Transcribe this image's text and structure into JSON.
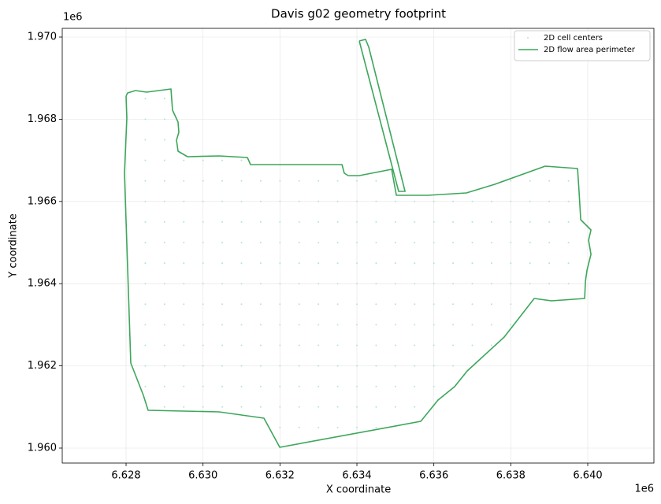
{
  "chart_data": {
    "type": "line",
    "title": "Davis g02 geometry footprint",
    "x_label": "X coordinate",
    "y_label": "Y coordinate",
    "x_offset_label": "1e6",
    "y_offset_label": "1e6",
    "xlim": [
      6626341,
      6641720
    ],
    "ylim": [
      1959636,
      1970211
    ],
    "xticks": [
      {
        "value": 6628000,
        "label": "6.628"
      },
      {
        "value": 6630000,
        "label": "6.630"
      },
      {
        "value": 6632000,
        "label": "6.632"
      },
      {
        "value": 6634000,
        "label": "6.634"
      },
      {
        "value": 6636000,
        "label": "6.636"
      },
      {
        "value": 6638000,
        "label": "6.638"
      },
      {
        "value": 6640000,
        "label": "6.640"
      }
    ],
    "yticks": [
      {
        "value": 1960000,
        "label": "1.960"
      },
      {
        "value": 1962000,
        "label": "1.962"
      },
      {
        "value": 1964000,
        "label": "1.964"
      },
      {
        "value": 1966000,
        "label": "1.966"
      },
      {
        "value": 1968000,
        "label": "1.968"
      },
      {
        "value": 1970000,
        "label": "1.970"
      }
    ],
    "grid": true,
    "legend": "upper right",
    "series": [
      {
        "name": "2D cell centers",
        "type": "scatter",
        "color": "#b4e3dc",
        "x": [
          6632000,
          6632500,
          6633000,
          6633500,
          6634000,
          6634500,
          6629000,
          6629500,
          6630000,
          6630500,
          6631000,
          6631500,
          6632000,
          6632500,
          6633000,
          6633500,
          6634000,
          6634500,
          6635000,
          6635500,
          6628500,
          6629000,
          6629500,
          6630000,
          6630500,
          6631000,
          6631500,
          6632000,
          6632500,
          6633000,
          6633500,
          6634000,
          6634500,
          6635000,
          6635500,
          6636000,
          6628500,
          6629000,
          6629500,
          6630000,
          6630500,
          6631000,
          6631500,
          6632000,
          6632500,
          6633000,
          6633500,
          6634000,
          6634500,
          6635000,
          6635500,
          6636000,
          6636500,
          6628500,
          6629000,
          6629500,
          6630000,
          6630500,
          6631000,
          6631500,
          6632000,
          6632500,
          6633000,
          6633500,
          6634000,
          6634500,
          6635000,
          6635500,
          6636000,
          6636500,
          6637000,
          6637500,
          6628500,
          6629000,
          6629500,
          6630000,
          6630500,
          6631000,
          6631500,
          6632000,
          6632500,
          6633000,
          6633500,
          6634000,
          6634500,
          6635000,
          6635500,
          6636000,
          6636500,
          6637000,
          6637500,
          6638000,
          6628500,
          6629000,
          6629500,
          6630000,
          6630500,
          6631000,
          6631500,
          6632000,
          6632500,
          6633000,
          6633500,
          6634000,
          6634500,
          6635000,
          6635500,
          6636000,
          6636500,
          6637000,
          6637500,
          6638000,
          6628500,
          6629000,
          6629500,
          6630000,
          6630500,
          6631000,
          6631500,
          6632000,
          6632500,
          6633000,
          6633500,
          6634000,
          6634500,
          6635000,
          6635500,
          6636000,
          6636500,
          6637000,
          6637500,
          6638000,
          6638500,
          6639000,
          6639500,
          6628500,
          6629000,
          6629500,
          6630000,
          6630500,
          6631000,
          6631500,
          6632000,
          6632500,
          6633000,
          6633500,
          6634000,
          6634500,
          6635000,
          6635500,
          6636000,
          6636500,
          6637000,
          6637500,
          6638000,
          6638500,
          6639000,
          6639500,
          6628500,
          6629000,
          6629500,
          6630000,
          6630500,
          6631000,
          6631500,
          6632000,
          6632500,
          6633000,
          6633500,
          6634000,
          6634500,
          6635000,
          6635500,
          6636000,
          6636500,
          6637000,
          6637500,
          6638000,
          6638500,
          6639000,
          6639500,
          6628500,
          6629000,
          6629500,
          6630000,
          6630500,
          6631000,
          6631500,
          6632000,
          6632500,
          6633000,
          6633500,
          6634000,
          6634500,
          6635000,
          6635500,
          6636000,
          6636500,
          6637000,
          6637500,
          6638000,
          6638500,
          6639000,
          6639500,
          6628500,
          6629000,
          6629500,
          6630000,
          6630500,
          6631000,
          6631500,
          6632000,
          6632500,
          6633000,
          6633500,
          6634000,
          6634500,
          6635000,
          6635500,
          6636000,
          6636500,
          6637000,
          6637500,
          6638000,
          6638500,
          6639000,
          6639500,
          6628500,
          6629000,
          6629500,
          6630000,
          6630500,
          6631000,
          6631500,
          6632000,
          6632500,
          6633000,
          6633500,
          6634000,
          6634500,
          6638000,
          6638500,
          6639000,
          6639500,
          6628500,
          6629000,
          6629500,
          6630000,
          6630500,
          6631000,
          6628500,
          6629000,
          6628500,
          6629000,
          6628500,
          6629000
        ],
        "y": [
          1960500,
          1960500,
          1960500,
          1960500,
          1960500,
          1960500,
          1961000,
          1961000,
          1961000,
          1961000,
          1961000,
          1961000,
          1961000,
          1961000,
          1961000,
          1961000,
          1961000,
          1961000,
          1961000,
          1961000,
          1961500,
          1961500,
          1961500,
          1961500,
          1961500,
          1961500,
          1961500,
          1961500,
          1961500,
          1961500,
          1961500,
          1961500,
          1961500,
          1961500,
          1961500,
          1961500,
          1962000,
          1962000,
          1962000,
          1962000,
          1962000,
          1962000,
          1962000,
          1962000,
          1962000,
          1962000,
          1962000,
          1962000,
          1962000,
          1962000,
          1962000,
          1962000,
          1962000,
          1962500,
          1962500,
          1962500,
          1962500,
          1962500,
          1962500,
          1962500,
          1962500,
          1962500,
          1962500,
          1962500,
          1962500,
          1962500,
          1962500,
          1962500,
          1962500,
          1962500,
          1962500,
          1962500,
          1963000,
          1963000,
          1963000,
          1963000,
          1963000,
          1963000,
          1963000,
          1963000,
          1963000,
          1963000,
          1963000,
          1963000,
          1963000,
          1963000,
          1963000,
          1963000,
          1963000,
          1963000,
          1963000,
          1963000,
          1963500,
          1963500,
          1963500,
          1963500,
          1963500,
          1963500,
          1963500,
          1963500,
          1963500,
          1963500,
          1963500,
          1963500,
          1963500,
          1963500,
          1963500,
          1963500,
          1963500,
          1963500,
          1963500,
          1963500,
          1964000,
          1964000,
          1964000,
          1964000,
          1964000,
          1964000,
          1964000,
          1964000,
          1964000,
          1964000,
          1964000,
          1964000,
          1964000,
          1964000,
          1964000,
          1964000,
          1964000,
          1964000,
          1964000,
          1964000,
          1964000,
          1964000,
          1964000,
          1964500,
          1964500,
          1964500,
          1964500,
          1964500,
          1964500,
          1964500,
          1964500,
          1964500,
          1964500,
          1964500,
          1964500,
          1964500,
          1964500,
          1964500,
          1964500,
          1964500,
          1964500,
          1964500,
          1964500,
          1964500,
          1964500,
          1964500,
          1965000,
          1965000,
          1965000,
          1965000,
          1965000,
          1965000,
          1965000,
          1965000,
          1965000,
          1965000,
          1965000,
          1965000,
          1965000,
          1965000,
          1965000,
          1965000,
          1965000,
          1965000,
          1965000,
          1965000,
          1965000,
          1965000,
          1965000,
          1965500,
          1965500,
          1965500,
          1965500,
          1965500,
          1965500,
          1965500,
          1965500,
          1965500,
          1965500,
          1965500,
          1965500,
          1965500,
          1965500,
          1965500,
          1965500,
          1965500,
          1965500,
          1965500,
          1965500,
          1965500,
          1965500,
          1965500,
          1966000,
          1966000,
          1966000,
          1966000,
          1966000,
          1966000,
          1966000,
          1966000,
          1966000,
          1966000,
          1966000,
          1966000,
          1966000,
          1966000,
          1966000,
          1966000,
          1966000,
          1966000,
          1966000,
          1966000,
          1966000,
          1966000,
          1966000,
          1966500,
          1966500,
          1966500,
          1966500,
          1966500,
          1966500,
          1966500,
          1966500,
          1966500,
          1966500,
          1966500,
          1966500,
          1966500,
          1966500,
          1966500,
          1966500,
          1966500,
          1967000,
          1967000,
          1967000,
          1967000,
          1967000,
          1967000,
          1967500,
          1967500,
          1968000,
          1968000,
          1968500,
          1968500
        ]
      },
      {
        "name": "2D flow area perimeter",
        "color": "#3da65b",
        "x": [
          6628000,
          6628041,
          6628246,
          6628532,
          6629167,
          6629208,
          6629352,
          6629372,
          6629311,
          6629352,
          6629597,
          6630417,
          6631154,
          6631236,
          6633612,
          6633673,
          6633775,
          6634062,
          6634902,
          6635025,
          6635844,
          6636847,
          6637585,
          6638895,
          6639735,
          6639776,
          6639817,
          6640083,
          6640022,
          6640083,
          6639981,
          6639940,
          6639919,
          6639059,
          6638609,
          6637830,
          6636868,
          6636540,
          6636110,
          6635660,
          6631994,
          6631584,
          6630417,
          6628573,
          6628451,
          6628123,
          6627959,
          6628020,
          6628000,
          null,
          6634062,
          6634226,
          6634308,
          6635250,
          6635086,
          6634062
        ],
        "y": [
          1968563,
          1968640,
          1968697,
          1968659,
          1968736,
          1968218,
          1967931,
          1967682,
          1967490,
          1967222,
          1967088,
          1967107,
          1967069,
          1966897,
          1966897,
          1966686,
          1966628,
          1966628,
          1966782,
          1966149,
          1966149,
          1966207,
          1966418,
          1966858,
          1966801,
          1966207,
          1965556,
          1965307,
          1965057,
          1964713,
          1964330,
          1964061,
          1963640,
          1963583,
          1963640,
          1962701,
          1961877,
          1961494,
          1961169,
          1960651,
          1960019,
          1960728,
          1960881,
          1960920,
          1961284,
          1962069,
          1966686,
          1968027,
          1968563,
          null,
          1969904,
          1969943,
          1969751,
          1966245,
          1966245,
          1969904
        ]
      }
    ]
  }
}
